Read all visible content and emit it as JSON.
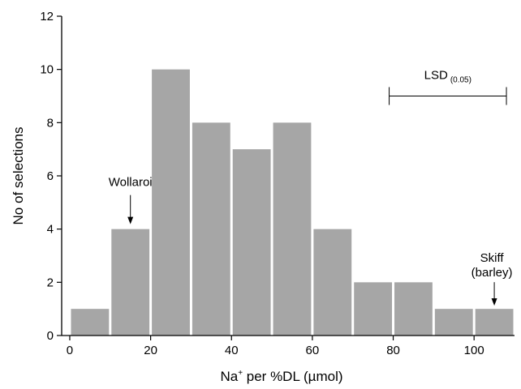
{
  "chart_data": {
    "type": "bar",
    "bin_width": 10,
    "x": [
      5,
      15,
      25,
      35,
      45,
      55,
      65,
      75,
      85,
      95,
      105
    ],
    "values": [
      1,
      4,
      10,
      8,
      7,
      8,
      4,
      2,
      2,
      1,
      1
    ],
    "xlim": [
      -2,
      110
    ],
    "ylim": [
      0,
      12
    ],
    "x_ticks": [
      "0",
      "20",
      "40",
      "60",
      "80",
      "100"
    ],
    "y_ticks": [
      "0",
      "2",
      "4",
      "6",
      "8",
      "10",
      "12"
    ],
    "xlabel_main": "Na",
    "xlabel_sup": "+",
    "xlabel_rest": " per %DL (µmol)",
    "ylabel": "No of selections",
    "bar_color": "#a6a6a6",
    "grid": false,
    "annotations": {
      "wollaroi": {
        "label": "Wollaroi",
        "x": 15,
        "y": 4
      },
      "skiff": {
        "line1": "Skiff",
        "line2": "(barley)",
        "x": 105,
        "y": 1
      },
      "lsd": {
        "label": "LSD",
        "sub": "(0.05)",
        "x_start": 79,
        "x_end": 108,
        "y": 9
      }
    }
  }
}
